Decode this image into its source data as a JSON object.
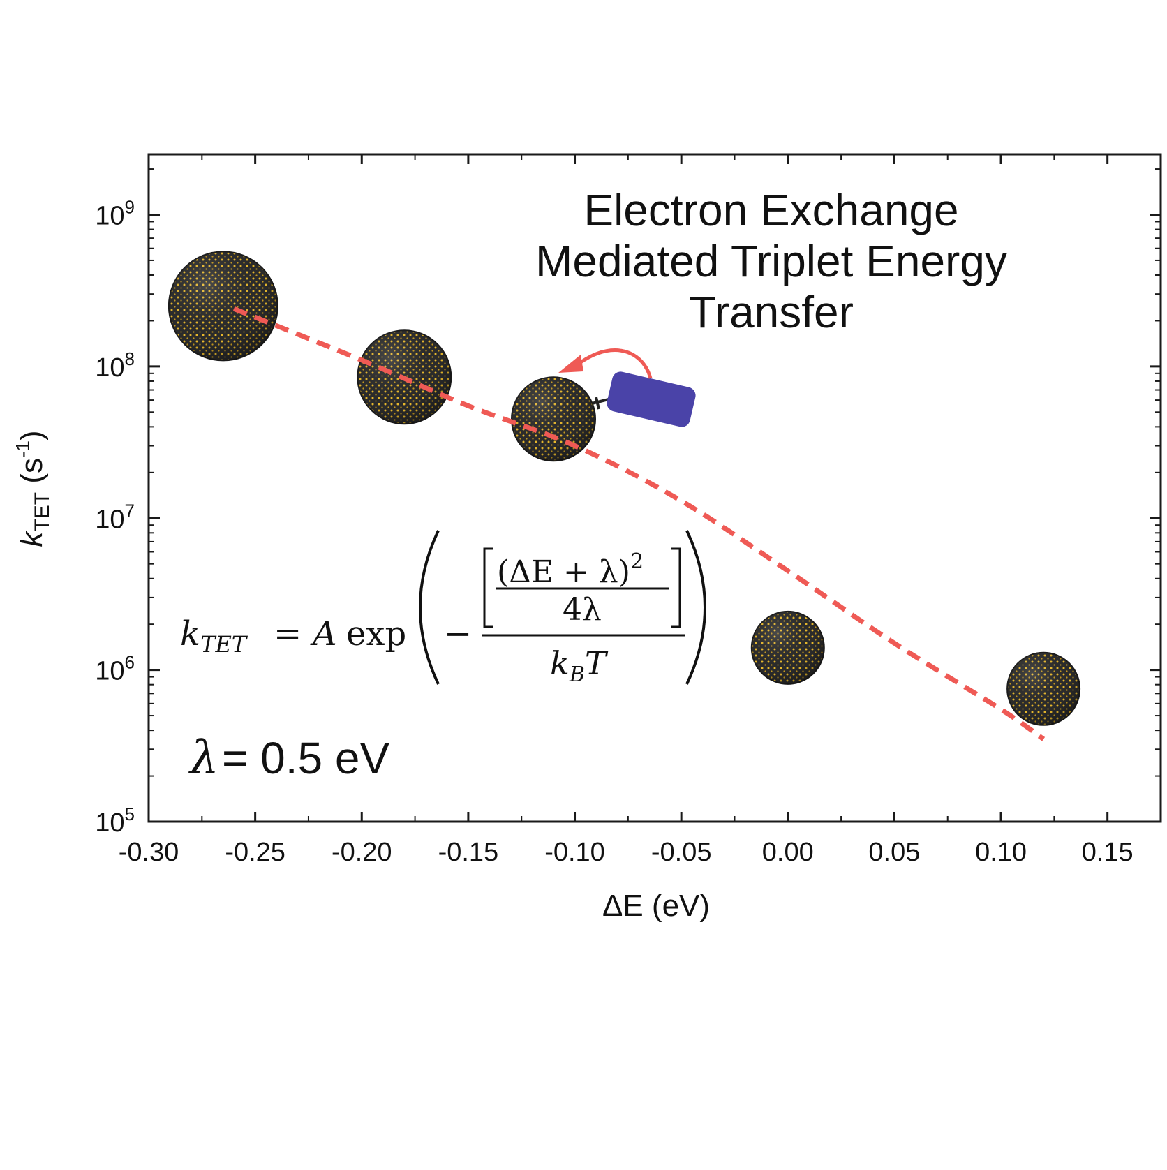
{
  "chart_data": {
    "type": "scatter",
    "title_lines": [
      "Electron Exchange",
      "Mediated Triplet Energy",
      "Transfer"
    ],
    "xlabel": "ΔE (eV)",
    "ylabel": {
      "main": "k",
      "sub": "TET",
      "unit_pre": "(s",
      "unit_sup": "-1",
      "unit_post": ")"
    },
    "x_scale": "linear",
    "y_scale": "log",
    "xlim": [
      -0.3,
      0.175
    ],
    "ylim": [
      100000,
      2500000000
    ],
    "x_ticks": [
      {
        "value": -0.3,
        "label": "-0.30"
      },
      {
        "value": -0.25,
        "label": "-0.25"
      },
      {
        "value": -0.2,
        "label": "-0.20"
      },
      {
        "value": -0.15,
        "label": "-0.15"
      },
      {
        "value": -0.1,
        "label": "-0.10"
      },
      {
        "value": -0.05,
        "label": "-0.05"
      },
      {
        "value": 0.0,
        "label": "0.00"
      },
      {
        "value": 0.05,
        "label": "0.05"
      },
      {
        "value": 0.1,
        "label": "0.10"
      },
      {
        "value": 0.15,
        "label": "0.15"
      }
    ],
    "y_ticks": [
      {
        "value": 100000,
        "base": "10",
        "exp": "5"
      },
      {
        "value": 1000000,
        "base": "10",
        "exp": "6"
      },
      {
        "value": 10000000,
        "base": "10",
        "exp": "7"
      },
      {
        "value": 100000000,
        "base": "10",
        "exp": "8"
      },
      {
        "value": 1000000000,
        "base": "10",
        "exp": "9"
      }
    ],
    "points": [
      {
        "x": -0.265,
        "y": 250000000,
        "size": "large"
      },
      {
        "x": -0.18,
        "y": 85000000,
        "size": "medium"
      },
      {
        "x": -0.11,
        "y": 45000000,
        "size": "medium-small"
      },
      {
        "x": 0.0,
        "y": 1400000,
        "size": "small"
      },
      {
        "x": 0.12,
        "y": 750000,
        "size": "small"
      }
    ],
    "fit_curve": {
      "style": "dashed",
      "color": "#ef5a55",
      "points": [
        {
          "x": -0.26,
          "y": 240000000
        },
        {
          "x": -0.2,
          "y": 110000000
        },
        {
          "x": -0.15,
          "y": 55000000
        },
        {
          "x": -0.1,
          "y": 30000000
        },
        {
          "x": -0.05,
          "y": 13000000
        },
        {
          "x": 0.0,
          "y": 4500000
        },
        {
          "x": 0.05,
          "y": 1500000
        },
        {
          "x": 0.1,
          "y": 550000
        },
        {
          "x": 0.12,
          "y": 350000
        }
      ]
    },
    "grid": false,
    "legend": "none",
    "annotations": {
      "equation": {
        "lhs_k": "k",
        "lhs_sub": "TET",
        "equals": "=",
        "A": "A",
        "exp": "exp",
        "minus": "−",
        "num_top": "(ΔE + λ)",
        "num_pow": "2",
        "num_bottom": "4λ",
        "den_k": "k",
        "den_sub": "B",
        "den_T": "T"
      },
      "lambda": {
        "symbol": "λ",
        "text": "= 0.5 eV"
      }
    },
    "colors": {
      "fit_line": "#ef5a55",
      "nanocrystal_dark": "#2d2d2d",
      "nanocrystal_dot": "#e9b92c",
      "ligand": "#4a43a8",
      "arrow": "#ef5a55",
      "axis": "#1a1a1a"
    }
  }
}
